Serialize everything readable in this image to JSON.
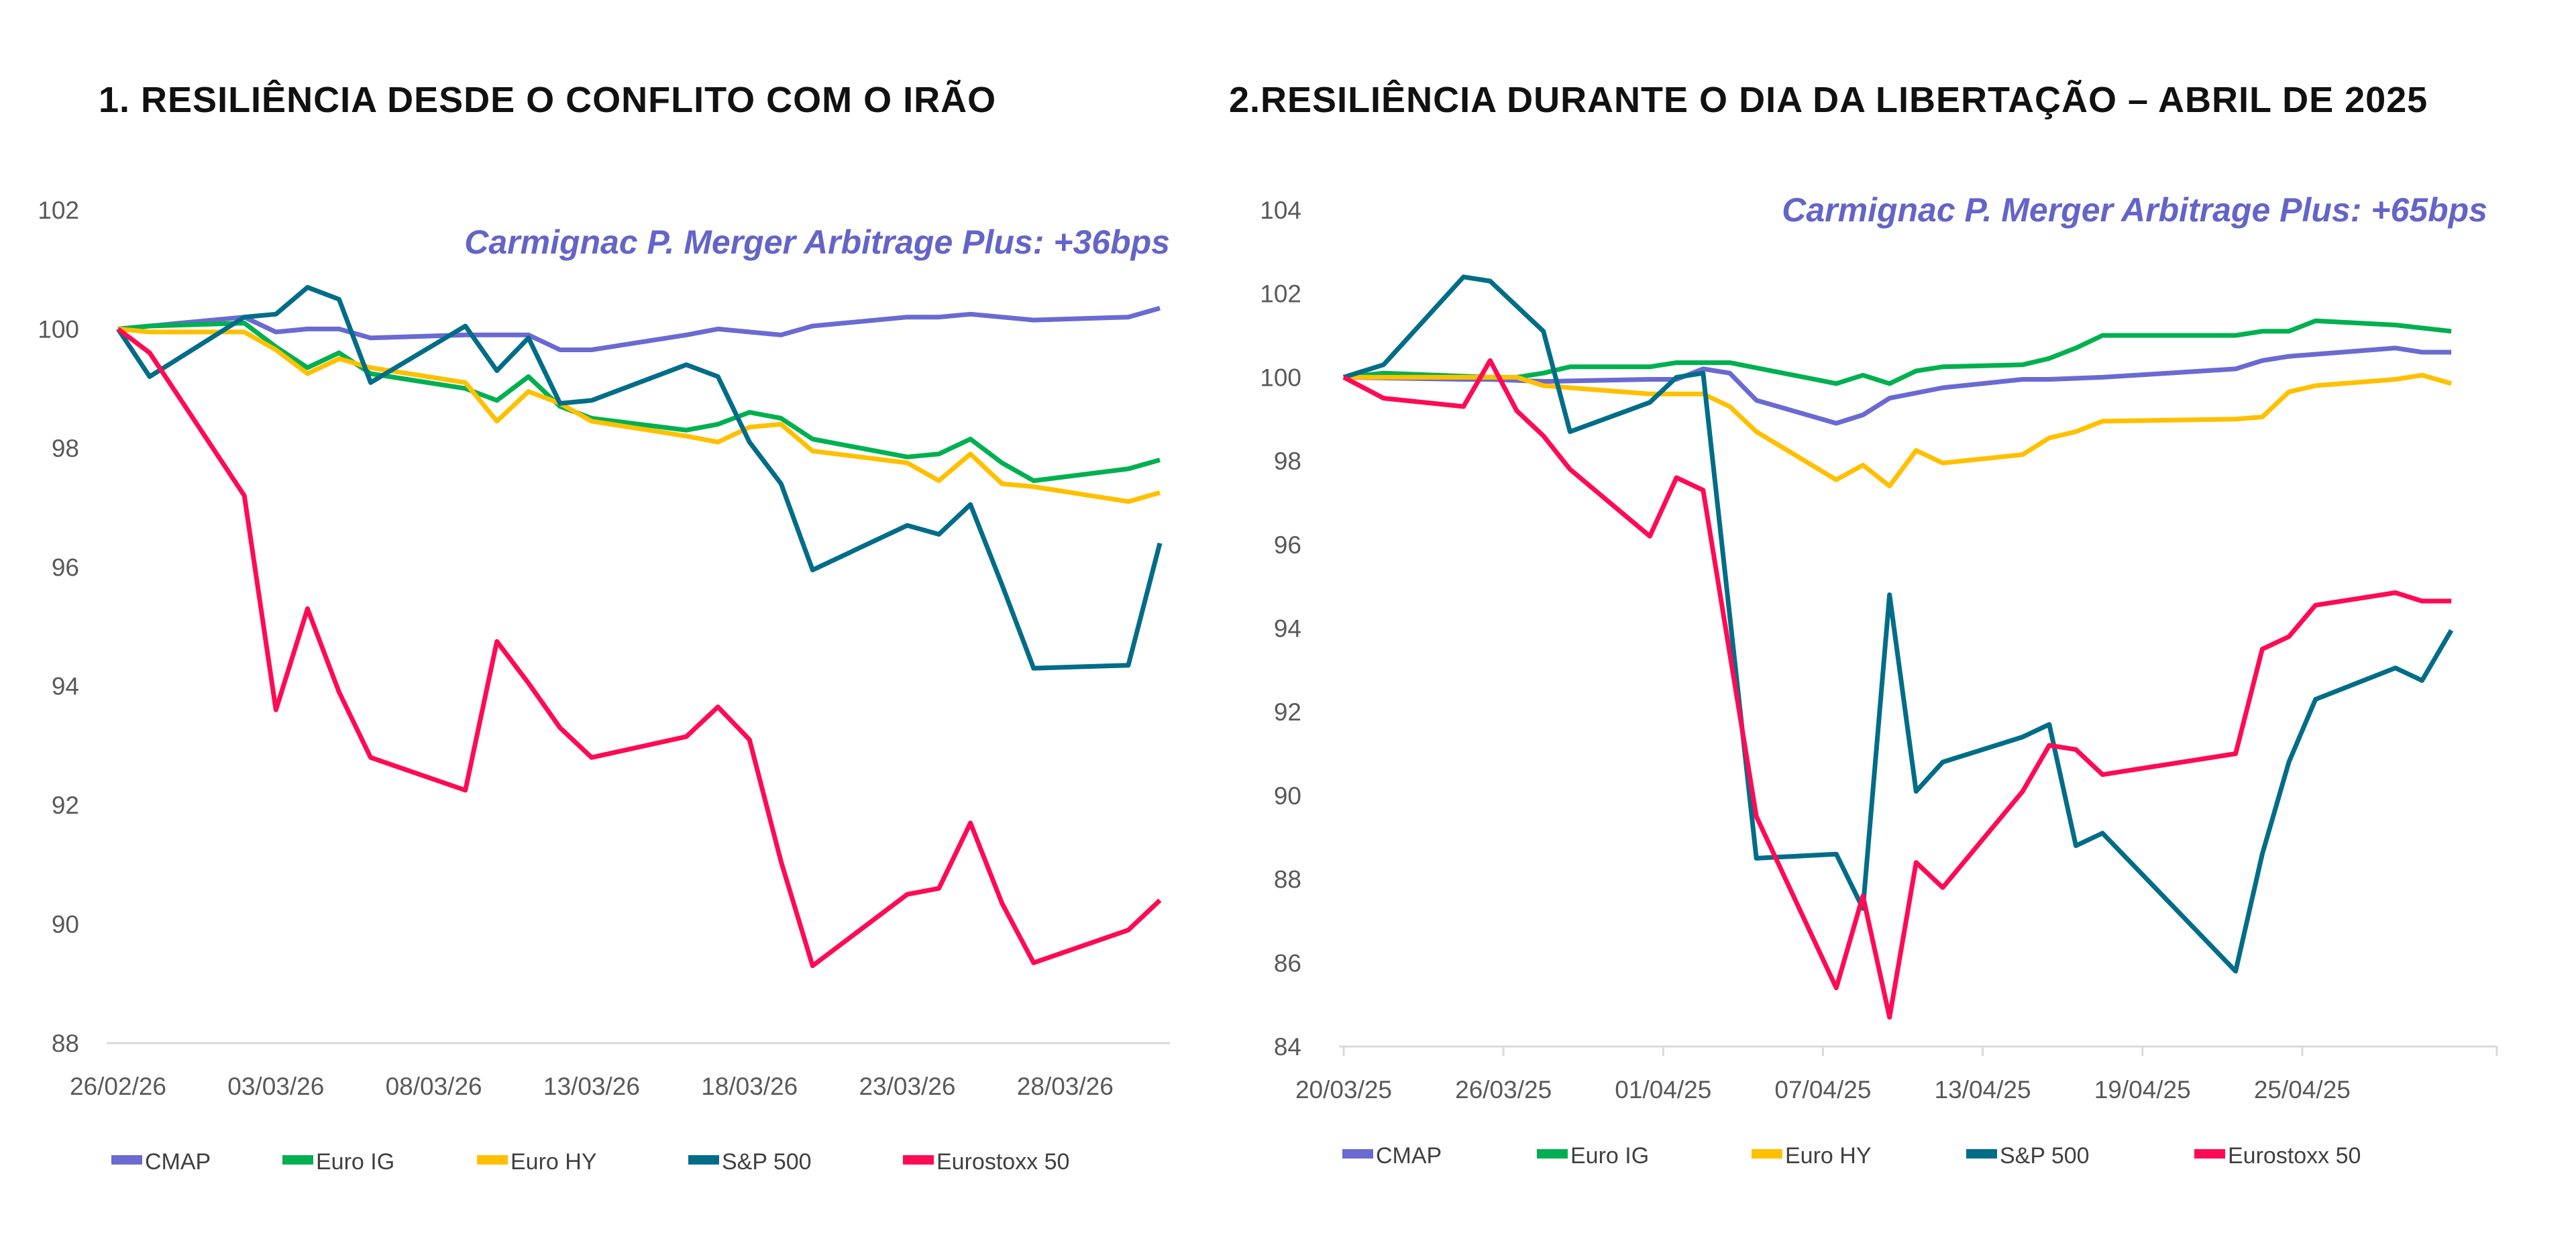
{
  "colors": {
    "CMAP": "#6a6ad2",
    "Euro IG": "#00b050",
    "Euro HY": "#ffc000",
    "S&P 500": "#006d88",
    "Eurostoxx 50": "#ff0a54"
  },
  "chart_data": [
    {
      "type": "line",
      "title": "1. RESILIÊNCIA DESDE O CONFLITO COM O IRÃO",
      "annotation": "Carmignac P. Merger Arbitrage Plus: +36bps",
      "xlabel": "",
      "ylabel": "",
      "ylim": [
        88,
        102
      ],
      "yticks": [
        "88",
        "90",
        "92",
        "94",
        "96",
        "98",
        "100",
        "102"
      ],
      "xlim_days": [
        0,
        33
      ],
      "xtick_days": [
        0,
        5,
        10,
        15,
        20,
        25,
        30
      ],
      "xticks": [
        "26/02/26",
        "03/03/26",
        "08/03/26",
        "13/03/26",
        "18/03/26",
        "23/03/26",
        "28/03/26"
      ],
      "legend": "bottom",
      "series": [
        {
          "name": "CMAP",
          "x": [
            0,
            4,
            5,
            6,
            7,
            8,
            11,
            12,
            13,
            14,
            15,
            18,
            19,
            20,
            21,
            22,
            25,
            26,
            27,
            28,
            29,
            32,
            33
          ],
          "y": [
            100,
            100.2,
            99.95,
            100,
            100,
            99.85,
            99.9,
            99.9,
            99.9,
            99.65,
            99.65,
            99.9,
            100,
            99.95,
            99.9,
            100.05,
            100.2,
            100.2,
            100.25,
            100.2,
            100.15,
            100.2,
            100.35
          ]
        },
        {
          "name": "Euro IG",
          "x": [
            0,
            1,
            4,
            5,
            6,
            7,
            8,
            11,
            12,
            13,
            14,
            15,
            18,
            19,
            20,
            21,
            22,
            25,
            26,
            27,
            28,
            29,
            32,
            33
          ],
          "y": [
            100,
            100.05,
            100.1,
            99.7,
            99.35,
            99.6,
            99.25,
            99,
            98.8,
            99.2,
            98.7,
            98.5,
            98.3,
            98.4,
            98.6,
            98.5,
            98.15,
            97.85,
            97.9,
            98.15,
            97.75,
            97.45,
            97.65,
            97.8
          ]
        },
        {
          "name": "Euro HY",
          "x": [
            0,
            1,
            4,
            5,
            6,
            7,
            8,
            11,
            12,
            13,
            14,
            15,
            18,
            19,
            20,
            21,
            22,
            25,
            26,
            27,
            28,
            29,
            32,
            33
          ],
          "y": [
            100,
            99.95,
            99.95,
            99.65,
            99.25,
            99.5,
            99.35,
            99.1,
            98.45,
            98.95,
            98.75,
            98.45,
            98.2,
            98.1,
            98.35,
            98.4,
            97.95,
            97.75,
            97.45,
            97.9,
            97.4,
            97.35,
            97.1,
            97.25
          ]
        },
        {
          "name": "S&P 500",
          "x": [
            0,
            1,
            4,
            5,
            6,
            7,
            8,
            11,
            12,
            13,
            14,
            15,
            18,
            19,
            20,
            21,
            22,
            25,
            26,
            27,
            28,
            29,
            32,
            33
          ],
          "y": [
            100,
            99.2,
            100.2,
            100.25,
            100.7,
            100.5,
            99.1,
            100.05,
            99.3,
            99.85,
            98.75,
            98.8,
            99.4,
            99.2,
            98.1,
            97.4,
            95.95,
            96.7,
            96.55,
            97.05,
            95.7,
            94.3,
            94.35,
            96.4
          ]
        },
        {
          "name": "Eurostoxx 50",
          "x": [
            0,
            1,
            4,
            5,
            6,
            7,
            8,
            11,
            12,
            13,
            14,
            15,
            18,
            19,
            20,
            21,
            22,
            25,
            26,
            27,
            28,
            29,
            32,
            33
          ],
          "y": [
            100,
            99.6,
            97.2,
            93.6,
            95.3,
            93.9,
            92.8,
            92.25,
            94.75,
            94.05,
            93.3,
            92.8,
            93.15,
            93.65,
            93.1,
            91.05,
            89.3,
            90.5,
            90.6,
            91.7,
            90.35,
            89.35,
            89.9,
            90.4
          ]
        }
      ]
    },
    {
      "type": "line",
      "title": "2.RESILIÊNCIA DURANTE O DIA DA LIBERTAÇÃO – ABRIL DE 2025",
      "annotation": "Carmignac P. Merger Arbitrage Plus: +65bps",
      "xlabel": "",
      "ylabel": "",
      "ylim": [
        84,
        104
      ],
      "yticks": [
        "84",
        "86",
        "88",
        "90",
        "92",
        "94",
        "96",
        "98",
        "100",
        "102",
        "104"
      ],
      "xlim_days": [
        0,
        42
      ],
      "xtick_days": [
        0,
        6,
        12,
        18,
        24,
        30,
        36
      ],
      "xticks": [
        "20/03/25",
        "26/03/25",
        "01/04/25",
        "07/04/25",
        "13/04/25",
        "19/04/25",
        "25/04/25"
      ],
      "legend": "bottom",
      "series": [
        {
          "name": "CMAP",
          "x": [
            0,
            4.5,
            5.5,
            7.5,
            11.5,
            12.5,
            13.5,
            14.5,
            15.5,
            18.5,
            19.5,
            20.5,
            22.5,
            25.5,
            26.5,
            28.5,
            33.5,
            34.5,
            35.5,
            36.5,
            39.5,
            40.5,
            41.6
          ],
          "y": [
            100,
            99.95,
            99.95,
            99.9,
            99.95,
            99.95,
            100.2,
            100.1,
            99.45,
            98.9,
            99.1,
            99.5,
            99.75,
            99.95,
            99.95,
            100,
            100.2,
            100.4,
            100.5,
            100.55,
            100.7,
            100.6,
            100.6
          ]
        },
        {
          "name": "Euro IG",
          "x": [
            0,
            1.5,
            5.5,
            6.5,
            7.5,
            8.5,
            11.5,
            12.5,
            13.5,
            14.5,
            18.5,
            19.5,
            20.5,
            21.5,
            22.5,
            25.5,
            26.5,
            27.5,
            28.5,
            33.5,
            34.5,
            35.5,
            36.5,
            39.5,
            41.6
          ],
          "y": [
            100,
            100.1,
            100,
            100,
            100.1,
            100.25,
            100.25,
            100.35,
            100.35,
            100.35,
            99.85,
            100.05,
            99.85,
            100.15,
            100.25,
            100.3,
            100.45,
            100.7,
            101,
            101,
            101.1,
            101.1,
            101.35,
            101.25,
            101.1
          ]
        },
        {
          "name": "Euro HY",
          "x": [
            0,
            5.5,
            6.5,
            7.5,
            11.5,
            13.5,
            14.5,
            15.5,
            18.5,
            19.5,
            20.5,
            21.5,
            22.5,
            25.5,
            26.5,
            27.5,
            28.5,
            33.5,
            34.5,
            35.5,
            36.5,
            39.5,
            40.5,
            41.6
          ],
          "y": [
            100,
            100,
            100,
            99.8,
            99.6,
            99.6,
            99.3,
            98.7,
            97.55,
            97.9,
            97.4,
            98.25,
            97.95,
            98.15,
            98.55,
            98.7,
            98.95,
            99,
            99.05,
            99.65,
            99.8,
            99.95,
            100.05,
            99.85
          ]
        },
        {
          "name": "S&P 500",
          "x": [
            0,
            1.5,
            4.5,
            5.5,
            7.5,
            8.5,
            11.5,
            12.5,
            13.5,
            15.5,
            18.5,
            19.5,
            20.5,
            21.5,
            22.5,
            25.5,
            26.5,
            27.5,
            28.5,
            33.5,
            34.5,
            35.5,
            36.5,
            39.5,
            40.5,
            41.6
          ],
          "y": [
            100,
            100.3,
            102.4,
            102.3,
            101.1,
            98.7,
            99.4,
            100,
            100.1,
            88.5,
            88.6,
            87.3,
            94.8,
            90.1,
            90.8,
            91.4,
            91.7,
            88.8,
            89.1,
            85.8,
            88.6,
            90.8,
            92.3,
            93.05,
            92.75,
            93.95
          ]
        },
        {
          "name": "Eurostoxx 50",
          "x": [
            0,
            1.5,
            4.5,
            5.5,
            6.5,
            7.5,
            8.5,
            11.5,
            12.5,
            13.5,
            15.5,
            18.5,
            19.5,
            20.5,
            21.5,
            22.5,
            25.5,
            26.5,
            27.5,
            28.5,
            33.5,
            34.5,
            35.5,
            36.5,
            39.5,
            40.5,
            41.6
          ],
          "y": [
            100,
            99.5,
            99.3,
            100.4,
            99.2,
            98.6,
            97.8,
            96.2,
            97.6,
            97.3,
            89.5,
            85.4,
            87.6,
            84.7,
            88.4,
            87.8,
            90.1,
            91.2,
            91.1,
            90.5,
            91,
            93.5,
            93.8,
            94.55,
            94.85,
            94.65,
            94.65
          ]
        }
      ]
    }
  ]
}
